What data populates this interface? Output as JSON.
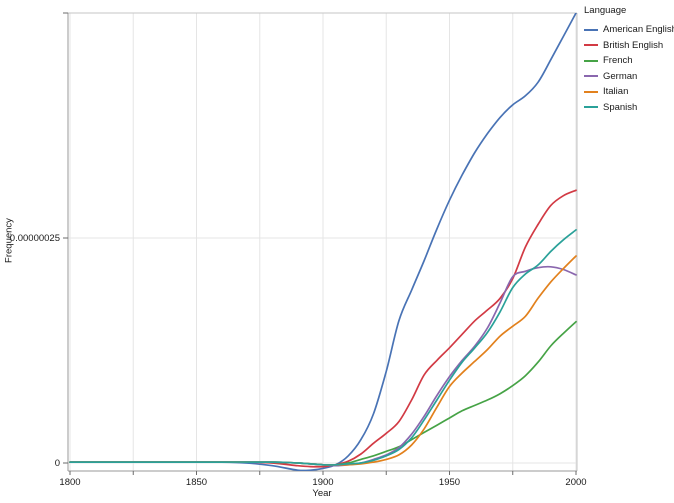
{
  "chart_data": {
    "type": "line",
    "title": "",
    "xlabel": "Year",
    "ylabel": "Frequency",
    "legend_title": "Language",
    "legend_position": "right-top",
    "grid": true,
    "xlim": [
      1800,
      2000
    ],
    "x_gridline_step": 25,
    "x_major_ticks": [
      1800,
      1850,
      1900,
      1950,
      2000
    ],
    "y_ticks": [
      {
        "value": 0,
        "label": "0"
      },
      {
        "value": 250,
        "label": "0.00000025"
      },
      {
        "value": 500,
        "label": ""
      }
    ],
    "values_unit": "frequency in 1e-9 units (0.000000001)",
    "ylim": [
      -9,
      500
    ],
    "series": [
      {
        "name": "American English",
        "color": "#4973b5",
        "points": [
          [
            1800,
            1
          ],
          [
            1820,
            1
          ],
          [
            1840,
            1
          ],
          [
            1860,
            1
          ],
          [
            1870,
            0
          ],
          [
            1880,
            -3
          ],
          [
            1890,
            -8
          ],
          [
            1895,
            -8
          ],
          [
            1900,
            -6
          ],
          [
            1905,
            -2
          ],
          [
            1910,
            8
          ],
          [
            1915,
            26
          ],
          [
            1920,
            55
          ],
          [
            1925,
            102
          ],
          [
            1930,
            158
          ],
          [
            1935,
            192
          ],
          [
            1940,
            225
          ],
          [
            1945,
            260
          ],
          [
            1950,
            292
          ],
          [
            1955,
            320
          ],
          [
            1960,
            345
          ],
          [
            1965,
            366
          ],
          [
            1970,
            384
          ],
          [
            1975,
            398
          ],
          [
            1980,
            408
          ],
          [
            1985,
            423
          ],
          [
            1990,
            448
          ],
          [
            1995,
            474
          ],
          [
            2000,
            500
          ]
        ]
      },
      {
        "name": "British English",
        "color": "#d23a44",
        "points": [
          [
            1800,
            1
          ],
          [
            1820,
            1
          ],
          [
            1840,
            1
          ],
          [
            1860,
            1
          ],
          [
            1870,
            1
          ],
          [
            1880,
            0
          ],
          [
            1890,
            -3
          ],
          [
            1895,
            -4
          ],
          [
            1900,
            -4
          ],
          [
            1905,
            -2
          ],
          [
            1910,
            2
          ],
          [
            1915,
            10
          ],
          [
            1920,
            22
          ],
          [
            1925,
            33
          ],
          [
            1930,
            46
          ],
          [
            1935,
            70
          ],
          [
            1940,
            98
          ],
          [
            1945,
            114
          ],
          [
            1950,
            128
          ],
          [
            1955,
            143
          ],
          [
            1960,
            158
          ],
          [
            1965,
            170
          ],
          [
            1970,
            183
          ],
          [
            1975,
            205
          ],
          [
            1980,
            240
          ],
          [
            1985,
            265
          ],
          [
            1990,
            286
          ],
          [
            1995,
            297
          ],
          [
            2000,
            303
          ]
        ]
      },
      {
        "name": "French",
        "color": "#46a346",
        "points": [
          [
            1800,
            1
          ],
          [
            1820,
            1
          ],
          [
            1840,
            1
          ],
          [
            1860,
            1
          ],
          [
            1880,
            1
          ],
          [
            1890,
            0
          ],
          [
            1900,
            -2
          ],
          [
            1905,
            -2
          ],
          [
            1910,
            0
          ],
          [
            1915,
            4
          ],
          [
            1920,
            8
          ],
          [
            1925,
            13
          ],
          [
            1930,
            18
          ],
          [
            1935,
            26
          ],
          [
            1940,
            34
          ],
          [
            1945,
            42
          ],
          [
            1950,
            50
          ],
          [
            1955,
            58
          ],
          [
            1960,
            64
          ],
          [
            1965,
            70
          ],
          [
            1970,
            77
          ],
          [
            1975,
            86
          ],
          [
            1980,
            97
          ],
          [
            1985,
            112
          ],
          [
            1990,
            130
          ],
          [
            1995,
            144
          ],
          [
            2000,
            157
          ]
        ]
      },
      {
        "name": "German",
        "color": "#8a67ae",
        "points": [
          [
            1800,
            1
          ],
          [
            1820,
            1
          ],
          [
            1840,
            1
          ],
          [
            1860,
            1
          ],
          [
            1880,
            1
          ],
          [
            1890,
            0
          ],
          [
            1900,
            -2
          ],
          [
            1905,
            -3
          ],
          [
            1910,
            -2
          ],
          [
            1915,
            0
          ],
          [
            1920,
            4
          ],
          [
            1925,
            9
          ],
          [
            1930,
            17
          ],
          [
            1935,
            32
          ],
          [
            1940,
            52
          ],
          [
            1945,
            75
          ],
          [
            1950,
            96
          ],
          [
            1955,
            114
          ],
          [
            1960,
            130
          ],
          [
            1965,
            150
          ],
          [
            1970,
            178
          ],
          [
            1975,
            207
          ],
          [
            1980,
            213
          ],
          [
            1985,
            217
          ],
          [
            1990,
            218
          ],
          [
            1995,
            215
          ],
          [
            2000,
            209
          ]
        ]
      },
      {
        "name": "Italian",
        "color": "#e2811d",
        "points": [
          [
            1800,
            1
          ],
          [
            1820,
            1
          ],
          [
            1840,
            1
          ],
          [
            1860,
            1
          ],
          [
            1880,
            1
          ],
          [
            1890,
            0
          ],
          [
            1900,
            -2
          ],
          [
            1905,
            -2
          ],
          [
            1910,
            -2
          ],
          [
            1915,
            -1
          ],
          [
            1920,
            1
          ],
          [
            1925,
            4
          ],
          [
            1930,
            9
          ],
          [
            1935,
            20
          ],
          [
            1940,
            38
          ],
          [
            1945,
            62
          ],
          [
            1950,
            85
          ],
          [
            1955,
            100
          ],
          [
            1960,
            113
          ],
          [
            1965,
            126
          ],
          [
            1970,
            141
          ],
          [
            1975,
            152
          ],
          [
            1980,
            163
          ],
          [
            1985,
            183
          ],
          [
            1990,
            201
          ],
          [
            1995,
            216
          ],
          [
            2000,
            230
          ]
        ]
      },
      {
        "name": "Spanish",
        "color": "#2aa199",
        "points": [
          [
            1800,
            1
          ],
          [
            1820,
            1
          ],
          [
            1840,
            1
          ],
          [
            1860,
            1
          ],
          [
            1880,
            1
          ],
          [
            1890,
            0
          ],
          [
            1900,
            -2
          ],
          [
            1905,
            -2
          ],
          [
            1910,
            -1
          ],
          [
            1915,
            0
          ],
          [
            1920,
            3
          ],
          [
            1925,
            8
          ],
          [
            1930,
            15
          ],
          [
            1935,
            28
          ],
          [
            1940,
            48
          ],
          [
            1945,
            70
          ],
          [
            1950,
            92
          ],
          [
            1955,
            112
          ],
          [
            1960,
            128
          ],
          [
            1965,
            145
          ],
          [
            1970,
            168
          ],
          [
            1975,
            195
          ],
          [
            1980,
            210
          ],
          [
            1985,
            220
          ],
          [
            1990,
            235
          ],
          [
            1995,
            248
          ],
          [
            2000,
            259
          ]
        ]
      }
    ]
  }
}
